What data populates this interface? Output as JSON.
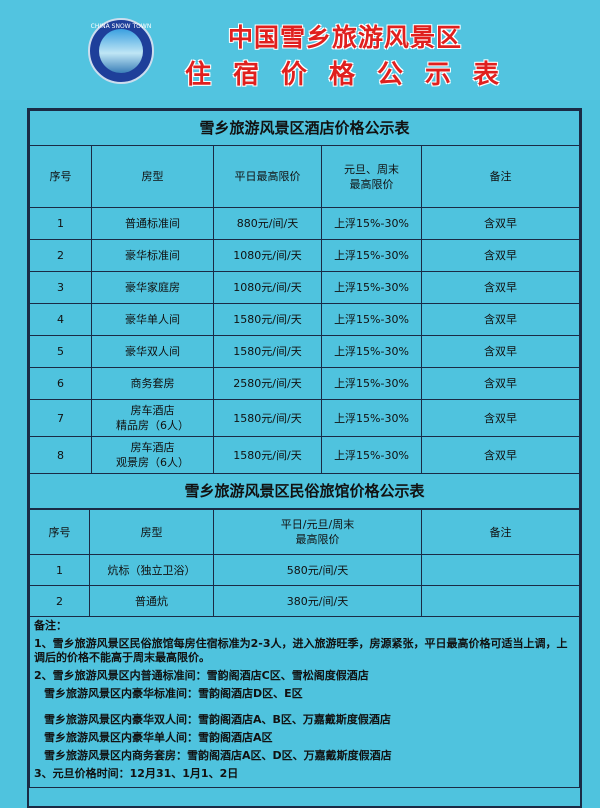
{
  "header": {
    "logo_text": "CHINA SNOW TOWN",
    "title1": "中国雪乡旅游风景区",
    "title2": "住宿价格公示表"
  },
  "colors": {
    "background": "#4fc3de",
    "title": "#e0201e"
  },
  "hotel": {
    "title": "雪乡旅游风景区酒店价格公示表",
    "headers": [
      "序号",
      "房型",
      "平日最高限价",
      "元旦、周末\n最高限价",
      "备注"
    ],
    "rows": [
      [
        "1",
        "普通标准间",
        "880元/间/天",
        "上浮15%-30%",
        "含双早"
      ],
      [
        "2",
        "豪华标准间",
        "1080元/间/天",
        "上浮15%-30%",
        "含双早"
      ],
      [
        "3",
        "豪华家庭房",
        "1080元/间/天",
        "上浮15%-30%",
        "含双早"
      ],
      [
        "4",
        "豪华单人间",
        "1580元/间/天",
        "上浮15%-30%",
        "含双早"
      ],
      [
        "5",
        "豪华双人间",
        "1580元/间/天",
        "上浮15%-30%",
        "含双早"
      ],
      [
        "6",
        "商务套房",
        "2580元/间/天",
        "上浮15%-30%",
        "含双早"
      ],
      [
        "7",
        "房车酒店\n精品房（6人）",
        "1580元/间/天",
        "上浮15%-30%",
        "含双早"
      ],
      [
        "8",
        "房车酒店\n观景房（6人）",
        "1580元/间/天",
        "上浮15%-30%",
        "含双早"
      ]
    ]
  },
  "folk": {
    "title": "雪乡旅游风景区民俗旅馆价格公示表",
    "headers": [
      "序号",
      "房型",
      "平日/元旦/周末\n最高限价",
      "备注"
    ],
    "rows": [
      [
        "1",
        "炕标（独立卫浴）",
        "580元/间/天",
        ""
      ],
      [
        "2",
        "普通炕",
        "380元/间/天",
        ""
      ]
    ]
  },
  "notes": {
    "heading": "备注：",
    "items": [
      "1、雪乡旅游风景区民俗旅馆每房住宿标准为2-3人，进入旅游旺季，房源紧张，平日最高价格可适当上调，上调后的价格不能高于周末最高限价。",
      "2、雪乡旅游风景区内普通标准间：雪韵阁酒店C区、雪松阁度假酒店",
      "雪乡旅游风景区内豪华标准间：雪韵阁酒店D区、E区",
      "雪乡旅游风景区内豪华双人间：雪韵阁酒店A、B区、万嘉戴斯度假酒店",
      "雪乡旅游风景区内豪华单人间：雪韵阁酒店A区",
      "雪乡旅游风景区内商务套房：雪韵阁酒店A区、D区、万嘉戴斯度假酒店",
      "3、元旦价格时间：12月31、1月1、2日"
    ]
  }
}
